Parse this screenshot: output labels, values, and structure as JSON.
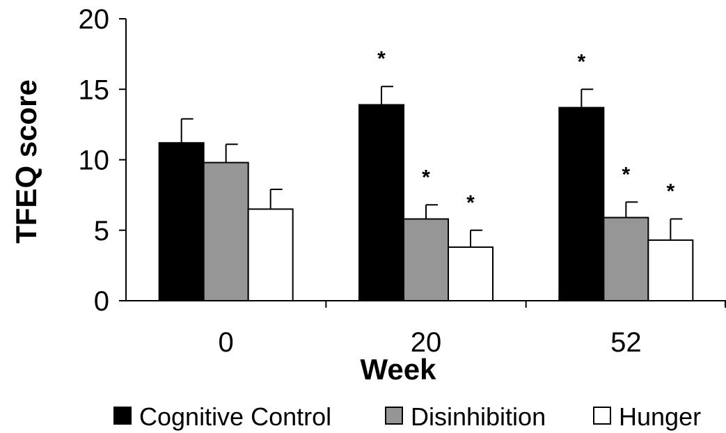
{
  "chart_data": {
    "type": "bar",
    "title": "",
    "xlabel": "Week",
    "ylabel": "TFEQ score",
    "categories": [
      "0",
      "20",
      "52"
    ],
    "ylim": [
      0,
      20
    ],
    "yticks": [
      0,
      5,
      10,
      15,
      20
    ],
    "grid": false,
    "legend_position": "bottom",
    "series": [
      {
        "name": "Cognitive Control",
        "color": "#000000",
        "values": [
          11.2,
          13.9,
          13.7
        ],
        "errors": [
          1.7,
          1.3,
          1.3
        ],
        "significance": [
          "",
          "*",
          "*"
        ]
      },
      {
        "name": "Disinhibition",
        "color": "#969696",
        "values": [
          9.8,
          5.8,
          5.9
        ],
        "errors": [
          1.3,
          1.0,
          1.1
        ],
        "significance": [
          "",
          "*",
          "*"
        ]
      },
      {
        "name": "Hunger",
        "color": "#ffffff",
        "values": [
          6.5,
          3.8,
          4.3
        ],
        "errors": [
          1.4,
          1.2,
          1.5
        ],
        "significance": [
          "",
          "*",
          "*"
        ]
      }
    ]
  }
}
